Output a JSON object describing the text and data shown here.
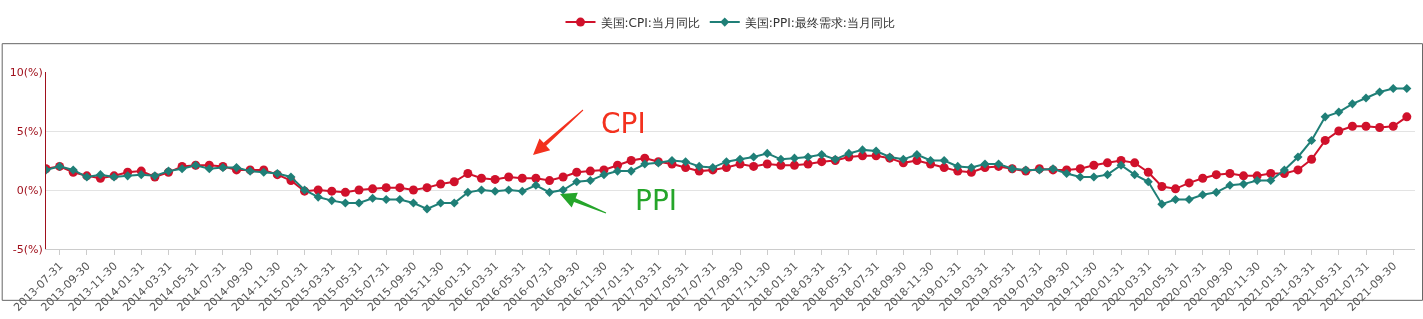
{
  "chart_data": {
    "type": "line",
    "categories": [
      null,
      "2013-07-31",
      null,
      "2013-09-30",
      null,
      "2013-11-30",
      null,
      "2014-01-31",
      null,
      "2014-03-31",
      null,
      "2014-05-31",
      null,
      "2014-07-31",
      null,
      "2014-09-30",
      null,
      "2014-11-30",
      null,
      "2015-01-31",
      null,
      "2015-03-31",
      null,
      "2015-05-31",
      null,
      "2015-07-31",
      null,
      "2015-09-30",
      null,
      "2015-11-30",
      null,
      "2016-01-31",
      null,
      "2016-03-31",
      null,
      "2016-05-31",
      null,
      "2016-07-31",
      null,
      "2016-09-30",
      null,
      "2016-11-30",
      null,
      "2017-01-31",
      null,
      "2017-03-31",
      null,
      "2017-05-31",
      null,
      "2017-07-31",
      null,
      "2017-09-30",
      null,
      "2017-11-30",
      null,
      "2018-01-31",
      null,
      "2018-03-31",
      null,
      "2018-05-31",
      null,
      "2018-07-31",
      null,
      "2018-09-30",
      null,
      "2018-11-30",
      null,
      "2019-01-31",
      null,
      "2019-03-31",
      null,
      "2019-05-31",
      null,
      "2019-07-31",
      null,
      "2019-09-30",
      null,
      "2019-11-30",
      null,
      "2020-01-31",
      null,
      "2020-03-31",
      null,
      "2020-05-31",
      null,
      "2020-07-31",
      null,
      "2020-09-30",
      null,
      "2020-11-30",
      null,
      "2021-01-31",
      null,
      "2021-03-31",
      null,
      "2021-05-31",
      null,
      "2021-07-31",
      null,
      "2021-09-30",
      null
    ],
    "series": [
      {
        "name": "美国:CPI:当月同比",
        "color": "#d0112b",
        "marker": "circle",
        "values": [
          1.8,
          2.0,
          1.5,
          1.2,
          1.0,
          1.2,
          1.5,
          1.6,
          1.1,
          1.5,
          2.0,
          2.1,
          2.1,
          2.0,
          1.7,
          1.7,
          1.7,
          1.3,
          0.8,
          -0.1,
          0.0,
          -0.1,
          -0.2,
          0.0,
          0.1,
          0.2,
          0.2,
          0.0,
          0.2,
          0.5,
          0.7,
          1.4,
          1.0,
          0.9,
          1.1,
          1.0,
          1.0,
          0.8,
          1.1,
          1.5,
          1.6,
          1.7,
          2.1,
          2.5,
          2.7,
          2.4,
          2.2,
          1.9,
          1.6,
          1.7,
          1.9,
          2.2,
          2.0,
          2.2,
          2.1,
          2.1,
          2.2,
          2.4,
          2.5,
          2.8,
          2.9,
          2.9,
          2.7,
          2.3,
          2.5,
          2.2,
          1.9,
          1.6,
          1.5,
          1.9,
          2.0,
          1.8,
          1.6,
          1.8,
          1.7,
          1.7,
          1.8,
          2.1,
          2.3,
          2.5,
          2.3,
          1.5,
          0.3,
          0.1,
          0.6,
          1.0,
          1.3,
          1.4,
          1.2,
          1.2,
          1.4,
          1.4,
          1.7,
          2.6,
          4.2,
          5.0,
          5.4,
          5.4,
          5.3,
          5.4,
          6.2
        ]
      },
      {
        "name": "美国:PPI:最终需求:当月同比",
        "color": "#1f7f77",
        "marker": "diamond",
        "values": [
          1.7,
          2.0,
          1.7,
          1.1,
          1.3,
          1.1,
          1.2,
          1.3,
          1.2,
          1.6,
          1.8,
          2.1,
          1.8,
          1.9,
          1.9,
          1.6,
          1.5,
          1.4,
          1.1,
          0.0,
          -0.6,
          -0.9,
          -1.1,
          -1.1,
          -0.7,
          -0.8,
          -0.8,
          -1.1,
          -1.6,
          -1.1,
          -1.1,
          -0.2,
          0.0,
          -0.1,
          0.0,
          -0.1,
          0.4,
          -0.2,
          0.0,
          0.7,
          0.8,
          1.3,
          1.6,
          1.6,
          2.2,
          2.3,
          2.5,
          2.4,
          2.0,
          1.9,
          2.4,
          2.6,
          2.8,
          3.1,
          2.6,
          2.7,
          2.8,
          3.0,
          2.6,
          3.1,
          3.4,
          3.3,
          2.8,
          2.6,
          3.0,
          2.5,
          2.5,
          2.0,
          1.9,
          2.2,
          2.2,
          1.8,
          1.7,
          1.7,
          1.8,
          1.4,
          1.1,
          1.1,
          1.3,
          2.1,
          1.3,
          0.7,
          -1.2,
          -0.8,
          -0.8,
          -0.4,
          -0.2,
          0.4,
          0.5,
          0.8,
          0.8,
          1.7,
          2.8,
          4.2,
          6.2,
          6.6,
          7.3,
          7.8,
          8.3,
          8.6,
          8.6
        ]
      }
    ],
    "ylim": [
      -5,
      10
    ],
    "yticks": [
      {
        "value": -5,
        "label": "-5(%)"
      },
      {
        "value": 0,
        "label": "0(%)"
      },
      {
        "value": 5,
        "label": "5(%)"
      },
      {
        "value": 10,
        "label": "10(%)"
      }
    ],
    "grid": "y",
    "legend": "top",
    "line_style": "solid",
    "annotations": [
      "CPI",
      "PPI"
    ]
  }
}
